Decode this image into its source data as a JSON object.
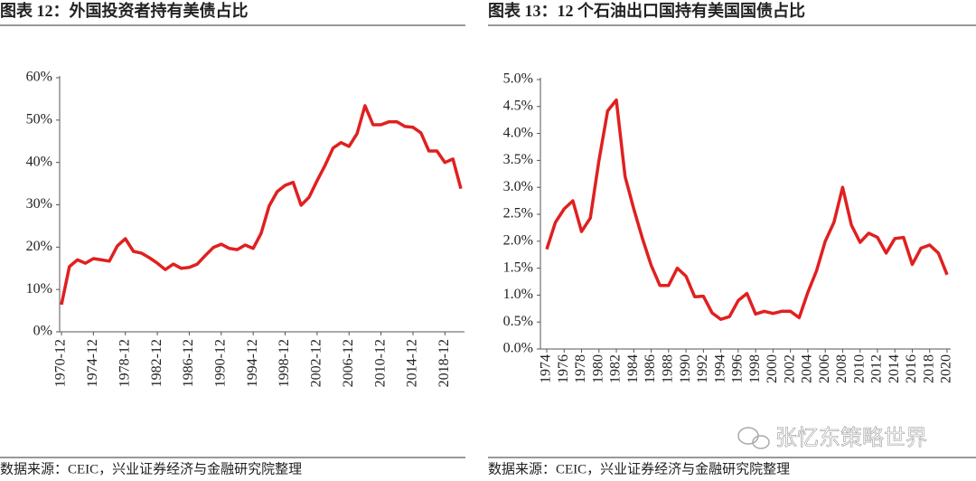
{
  "chart_data": [
    {
      "type": "line",
      "title": "图表 12：外国投资者持有美债占比",
      "source": "数据来源：CEIC，兴业证券经济与金融研究院整理",
      "categories": [
        "1970-12",
        null,
        null,
        null,
        "1974-12",
        null,
        null,
        null,
        "1978-12",
        null,
        null,
        null,
        "1982-12",
        null,
        null,
        null,
        "1986-12",
        null,
        null,
        null,
        "1990-12",
        null,
        null,
        null,
        "1994-12",
        null,
        null,
        null,
        "1998-12",
        null,
        null,
        null,
        "2002-12",
        null,
        null,
        null,
        "2006-12",
        null,
        null,
        null,
        "2010-12",
        null,
        null,
        null,
        "2014-12",
        null,
        null,
        null,
        "2018-12",
        null,
        null
      ],
      "series": [
        {
          "name": null,
          "color": "#e02020",
          "values": [
            6.4,
            15.4,
            17,
            16.2,
            17.3,
            17,
            16.7,
            20.3,
            22,
            19,
            18.6,
            17.5,
            16.2,
            14.7,
            16,
            15,
            15.2,
            16,
            18,
            19.9,
            20.7,
            19.7,
            19.4,
            20.5,
            19.7,
            23.3,
            29.7,
            33.1,
            34.6,
            35.3,
            29.9,
            31.8,
            35.7,
            39.3,
            43.4,
            44.7,
            43.8,
            46.8,
            53.4,
            48.9,
            48.9,
            49.6,
            49.6,
            48.5,
            48.3,
            47,
            42.7,
            42.7,
            40,
            40.8,
            33.8
          ]
        }
      ],
      "ylim": [
        0,
        60
      ],
      "yticks": [
        {
          "value": 0,
          "label": "0%"
        },
        {
          "value": 10,
          "label": "10%"
        },
        {
          "value": 20,
          "label": "20%"
        },
        {
          "value": 30,
          "label": "30%"
        },
        {
          "value": 40,
          "label": "40%"
        },
        {
          "value": 50,
          "label": "50%"
        },
        {
          "value": 60,
          "label": "60%"
        }
      ],
      "grid": false
    },
    {
      "type": "line",
      "title": "图表 13：12 个石油出口国持有美国国债占比",
      "source": "数据来源：CEIC，兴业证券经济与金融研究院整理",
      "categories": [
        "1974",
        null,
        "1976",
        null,
        "1978",
        null,
        "1980",
        null,
        "1982",
        null,
        "1984",
        null,
        "1986",
        null,
        "1988",
        null,
        "1990",
        null,
        "1992",
        null,
        "1994",
        null,
        "1996",
        null,
        "1998",
        null,
        "2000",
        null,
        "2002",
        null,
        "2004",
        null,
        "2006",
        null,
        "2008",
        null,
        "2010",
        null,
        "2012",
        null,
        "2014",
        null,
        "2016",
        null,
        "2018",
        null,
        "2020"
      ],
      "series": [
        {
          "name": null,
          "color": "#e02020",
          "values": [
            1.85,
            2.35,
            2.6,
            2.75,
            2.18,
            2.43,
            3.5,
            4.42,
            4.62,
            3.2,
            2.6,
            2.05,
            1.55,
            1.18,
            1.18,
            1.5,
            1.35,
            0.97,
            0.98,
            0.67,
            0.55,
            0.6,
            0.9,
            1.03,
            0.65,
            0.7,
            0.66,
            0.7,
            0.7,
            0.58,
            1.05,
            1.45,
            2.0,
            2.35,
            3.0,
            2.3,
            1.98,
            2.15,
            2.07,
            1.78,
            2.05,
            2.07,
            1.57,
            1.87,
            1.93,
            1.78,
            1.38
          ]
        }
      ],
      "ylim": [
        0,
        5
      ],
      "yticks": [
        {
          "value": 0,
          "label": "0.0%"
        },
        {
          "value": 0.5,
          "label": "0.5%"
        },
        {
          "value": 1,
          "label": "1.0%"
        },
        {
          "value": 1.5,
          "label": "1.5%"
        },
        {
          "value": 2,
          "label": "2.0%"
        },
        {
          "value": 2.5,
          "label": "2.5%"
        },
        {
          "value": 3,
          "label": "3.0%"
        },
        {
          "value": 3.5,
          "label": "3.5%"
        },
        {
          "value": 4,
          "label": "4.0%"
        },
        {
          "value": 4.5,
          "label": "4.5%"
        },
        {
          "value": 5,
          "label": "5.0%"
        }
      ],
      "grid": false
    }
  ],
  "watermark": "张忆东策略世界"
}
